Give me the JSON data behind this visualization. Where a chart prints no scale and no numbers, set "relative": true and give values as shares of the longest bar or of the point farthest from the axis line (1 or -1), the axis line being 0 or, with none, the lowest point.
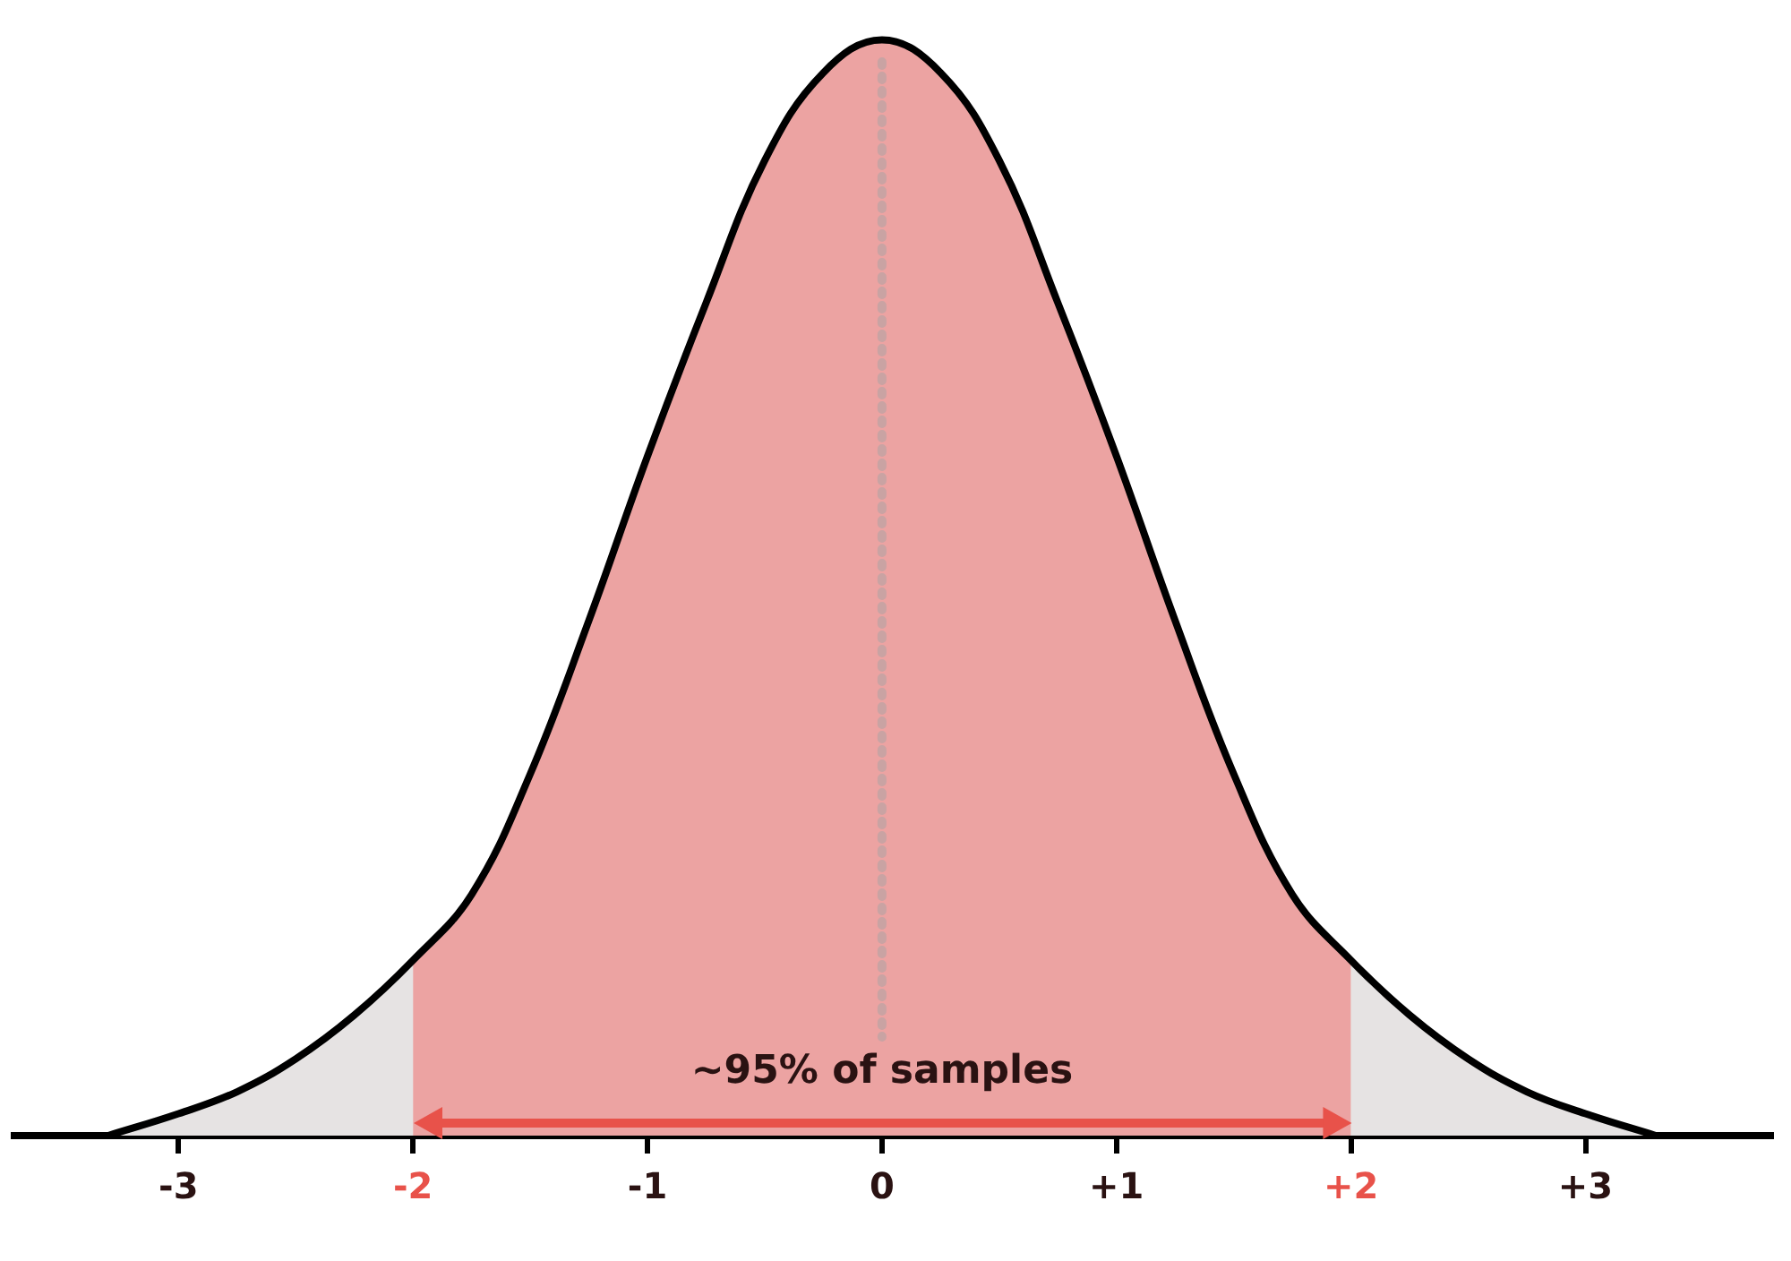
{
  "chart_data": {
    "type": "area",
    "relative": true,
    "grid": false,
    "legend": false,
    "marker": "none",
    "xlim": [
      -3.7,
      3.8
    ],
    "xticks": [
      {
        "value": -3,
        "label": "-3"
      },
      {
        "value": -2,
        "label": "-2"
      },
      {
        "value": -1,
        "label": "-1"
      },
      0,
      {
        "value": 1,
        "label": "+1"
      },
      {
        "value": 2,
        "label": "+2"
      },
      {
        "value": 3,
        "label": "+3"
      }
    ],
    "series": [
      {
        "color": "#e6e3e3",
        "x": [
          -3.3,
          -3,
          -2.75,
          -2.5,
          -2.25,
          -2,
          -1.75,
          -1.5,
          -1.25,
          -1,
          -0.75,
          -0.5,
          -0.25,
          0,
          0.25,
          0.5,
          0.75,
          1,
          1.25,
          1.5,
          1.75,
          2,
          2.25,
          2.5,
          2.75,
          3,
          3.3
        ],
        "values": [
          0,
          0.02,
          0.04,
          0.07,
          0.11,
          0.16,
          0.22,
          0.33,
          0.47,
          0.62,
          0.76,
          0.89,
          0.97,
          1,
          0.97,
          0.89,
          0.76,
          0.62,
          0.47,
          0.33,
          0.22,
          0.16,
          0.11,
          0.07,
          0.04,
          0.02,
          0
        ]
      },
      {
        "color": "#eca3a2",
        "x": [
          -2,
          -1.75,
          -1.5,
          -1.25,
          -1,
          -0.75,
          -0.5,
          -0.25,
          0,
          0.25,
          0.5,
          0.75,
          1,
          1.25,
          1.5,
          1.75,
          2
        ],
        "values": [
          0.16,
          0.22,
          0.33,
          0.47,
          0.62,
          0.76,
          0.89,
          0.97,
          1,
          0.97,
          0.89,
          0.76,
          0.62,
          0.47,
          0.33,
          0.22,
          0.16
        ]
      }
    ],
    "ref_lines": [
      {
        "axis": "x",
        "value": 0,
        "color": "#c9a3a3",
        "line_style": "dotted"
      }
    ],
    "annotations": [
      "~95% of samples"
    ]
  }
}
